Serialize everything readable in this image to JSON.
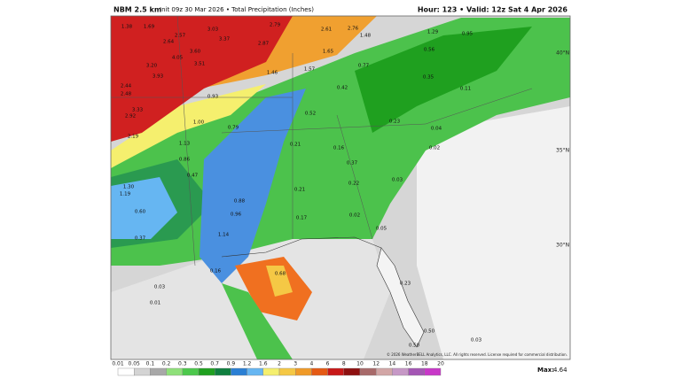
{
  "header": {
    "left_title": "NBM 2.5 km",
    "left_text": "Init 09z 30 Mar 2026 • Total Precipitation (Inches)",
    "right_text": "Hour: 123 • Valid: 12z Sat 4 Apr 2026"
  },
  "map": {
    "latitude_labels": [
      "40°N",
      "35°N",
      "30°N"
    ],
    "copyright": "© 2026 WeatherBELL Analytics, LLC. All rights reserved. License required for commercial distribution.",
    "point_values": [
      "1.38",
      "1.69",
      "2.57",
      "3.03",
      "3.37",
      "2.64",
      "3.60",
      "2.87",
      "2.79",
      "2.61",
      "2.76",
      "1.48",
      "1.29",
      "0.95",
      "3.20",
      "4.05",
      "3.51",
      "1.57",
      "1.65",
      "0.77",
      "0.56",
      "2.44",
      "2.48",
      "3.93",
      "1.46",
      "0.93",
      "0.42",
      "0.35",
      "0.11",
      "3.33",
      "2.92",
      "0.79",
      "1.00",
      "0.52",
      "0.23",
      "0.04",
      "2.19",
      "1.13",
      "0.86",
      "0.21",
      "0.16",
      "0.37",
      "0.02",
      "1.30",
      "1.19",
      "0.47",
      "0.88",
      "0.21",
      "0.22",
      "0.03",
      "0.60",
      "0.96",
      "0.17",
      "0.02",
      "0.37",
      "1.14",
      "0.05",
      "0.16",
      "0.68",
      "0.03",
      "0.23",
      "0.01",
      "0.50",
      "0.50",
      "0.03"
    ]
  },
  "color_scale": {
    "labels": [
      "0.01",
      "0.05",
      "0.1",
      "0.2",
      "0.3",
      "0.5",
      "0.7",
      "0.9",
      "1.2",
      "1.6",
      "2",
      "3",
      "4",
      "6",
      "8",
      "10",
      "12",
      "14",
      "16",
      "18",
      "20"
    ],
    "colors": [
      "#ffffff",
      "#d4d4d4",
      "#a8a8a8",
      "#8fe07a",
      "#4cc84c",
      "#1fa01f",
      "#0f7f3f",
      "#2a7fd4",
      "#66b6f2",
      "#f5ef6e",
      "#f5c845",
      "#f09a28",
      "#e55a14",
      "#c81818",
      "#8e1010",
      "#a86a6a",
      "#d2a6a6",
      "#c698c6",
      "#a456b4",
      "#c838c8"
    ]
  },
  "max": {
    "label": "Max:",
    "value": "4.64"
  }
}
